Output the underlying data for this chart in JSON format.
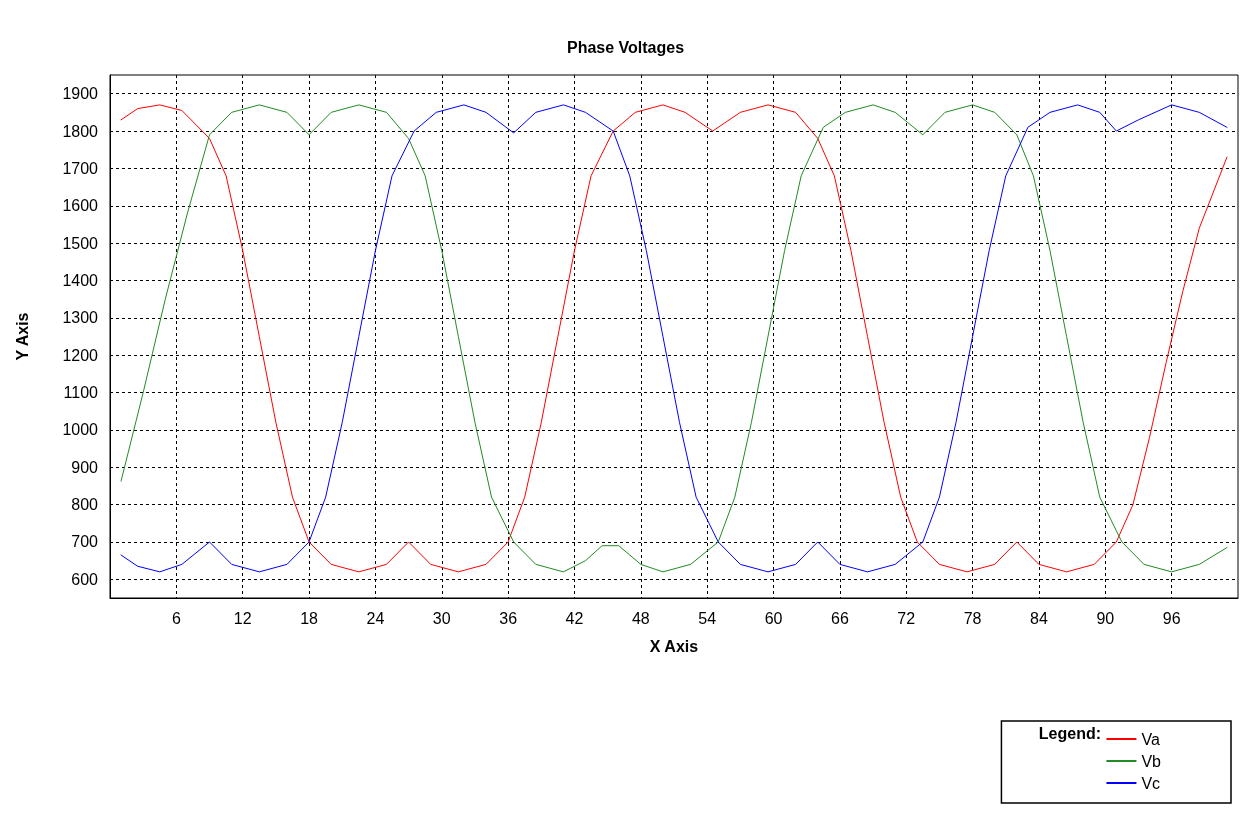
{
  "chart_data": {
    "type": "line",
    "title": "Phase Voltages",
    "xlabel": "X Axis",
    "ylabel": "Y Axis",
    "legend_title": "Legend:",
    "legend": "bottom right",
    "grid": true,
    "marker": "none",
    "line_style": "solid",
    "xlim": [
      0,
      102
    ],
    "xticks": [
      6,
      12,
      18,
      24,
      30,
      36,
      42,
      48,
      54,
      60,
      66,
      72,
      78,
      84,
      90,
      96
    ],
    "ylim": [
      550,
      1950
    ],
    "yticks": [
      600,
      700,
      800,
      900,
      1000,
      1100,
      1200,
      1300,
      1400,
      1500,
      1600,
      1700,
      1800,
      1900
    ],
    "series": [
      {
        "name": "Va",
        "color": "#ff0000",
        "x": [
          1,
          2.5,
          4.5,
          6.5,
          9,
          10.5,
          12,
          13.5,
          15,
          16.5,
          18,
          20,
          22.5,
          25,
          27,
          29,
          31.5,
          34,
          36,
          37.5,
          39,
          40.5,
          42,
          43.5,
          45.5,
          47.5,
          50,
          52,
          54.5,
          57,
          59.5,
          62,
          64,
          65.5,
          67,
          68.5,
          70,
          71.5,
          73,
          75,
          77.5,
          80,
          82,
          84,
          86.5,
          89,
          91,
          92.5,
          94,
          95.5,
          97,
          98.5,
          101
        ],
        "values": [
          1830,
          1860,
          1870,
          1855,
          1780,
          1680,
          1480,
          1250,
          1020,
          820,
          700,
          640,
          620,
          640,
          700,
          640,
          620,
          640,
          700,
          820,
          1020,
          1250,
          1480,
          1680,
          1800,
          1850,
          1870,
          1850,
          1800,
          1850,
          1870,
          1850,
          1780,
          1680,
          1480,
          1250,
          1020,
          820,
          700,
          640,
          620,
          640,
          700,
          640,
          620,
          640,
          700,
          800,
          980,
          1180,
          1370,
          1540,
          1730
        ]
      },
      {
        "name": "Vb",
        "color": "#228b22",
        "x": [
          1,
          3,
          5,
          7,
          9,
          11,
          13.5,
          16,
          18,
          20,
          22.5,
          25,
          27,
          28.5,
          30,
          31.5,
          33,
          34.5,
          36.5,
          38.5,
          41,
          43,
          44.5,
          46,
          48,
          50,
          52.5,
          55,
          56.5,
          58,
          59.5,
          61,
          62.5,
          64.5,
          66.5,
          69,
          71,
          73.5,
          75.5,
          78,
          80,
          82,
          83.5,
          85,
          86.5,
          88,
          89.5,
          91.5,
          93.5,
          96,
          98.5,
          101
        ],
        "values": [
          863,
          1100,
          1350,
          1580,
          1790,
          1850,
          1870,
          1850,
          1790,
          1850,
          1870,
          1850,
          1780,
          1680,
          1480,
          1250,
          1020,
          820,
          700,
          640,
          620,
          650,
          690,
          690,
          640,
          620,
          640,
          700,
          820,
          1020,
          1250,
          1480,
          1680,
          1810,
          1850,
          1870,
          1850,
          1790,
          1850,
          1870,
          1850,
          1790,
          1680,
          1480,
          1250,
          1020,
          820,
          700,
          640,
          620,
          640,
          685
        ]
      },
      {
        "name": "Vc",
        "color": "#0000ff",
        "x": [
          1,
          2.5,
          4.5,
          6.5,
          9,
          11,
          13.5,
          16,
          18,
          19.5,
          21,
          22.5,
          24,
          25.5,
          27.5,
          29.5,
          32,
          34,
          36.5,
          38.5,
          41,
          43,
          45.5,
          47,
          48.5,
          50,
          51.5,
          53,
          55,
          57,
          59.5,
          62,
          64,
          66,
          68.5,
          71,
          73.5,
          75,
          76.5,
          78,
          79.5,
          81,
          83,
          85,
          87.5,
          89.5,
          91,
          93,
          96,
          98.5,
          101
        ],
        "values": [
          665,
          635,
          620,
          640,
          700,
          640,
          620,
          640,
          700,
          820,
          1020,
          1250,
          1480,
          1680,
          1800,
          1850,
          1870,
          1850,
          1795,
          1850,
          1870,
          1850,
          1800,
          1680,
          1480,
          1250,
          1020,
          820,
          700,
          640,
          620,
          640,
          700,
          640,
          620,
          640,
          700,
          820,
          1020,
          1250,
          1480,
          1680,
          1810,
          1850,
          1870,
          1850,
          1800,
          1830,
          1870,
          1850,
          1810
        ]
      }
    ]
  }
}
